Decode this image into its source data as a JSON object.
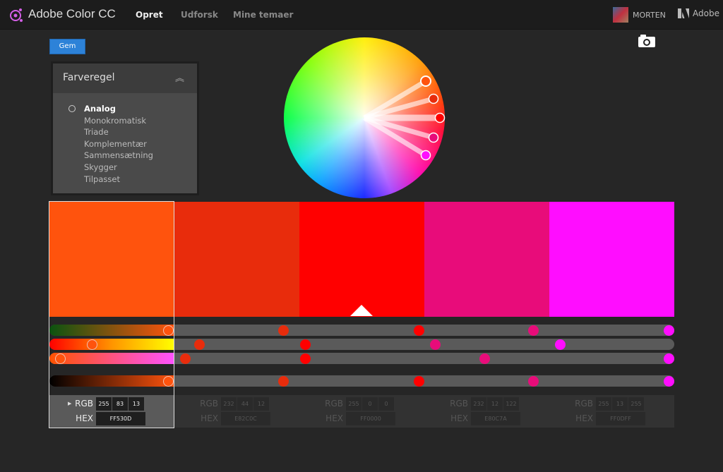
{
  "app": {
    "title": "Adobe Color CC",
    "nav": [
      "Opret",
      "Udforsk",
      "Mine temaer"
    ],
    "user": "MORTEN",
    "brand": "Adobe"
  },
  "toolbar": {
    "save_label": "Gem"
  },
  "panel": {
    "title": "Farveregel",
    "rules": [
      "Analog",
      "Monokromatisk",
      "Triade",
      "Komplementær",
      "Sammensætning",
      "Skygger",
      "Tilpasset"
    ],
    "selected": "Analog"
  },
  "swatches": [
    {
      "hex": "FF530D",
      "color": "#FF530D",
      "rgb": [
        "255",
        "83",
        "13"
      ]
    },
    {
      "hex": "E82C0C",
      "color": "#E82C0C",
      "rgb": [
        "232",
        "44",
        "12"
      ]
    },
    {
      "hex": "FF0000",
      "color": "#FF0000",
      "rgb": [
        "255",
        "0",
        "0"
      ]
    },
    {
      "hex": "E80C7A",
      "color": "#E80C7A",
      "rgb": [
        "232",
        "12",
        "122"
      ]
    },
    {
      "hex": "FF0DFF",
      "color": "#FF0DFF",
      "rgb": [
        "255",
        "13",
        "255"
      ]
    }
  ],
  "labels": {
    "rgb": "RGB",
    "hex": "HEX"
  },
  "active_swatch": 0,
  "base_swatch": 2
}
